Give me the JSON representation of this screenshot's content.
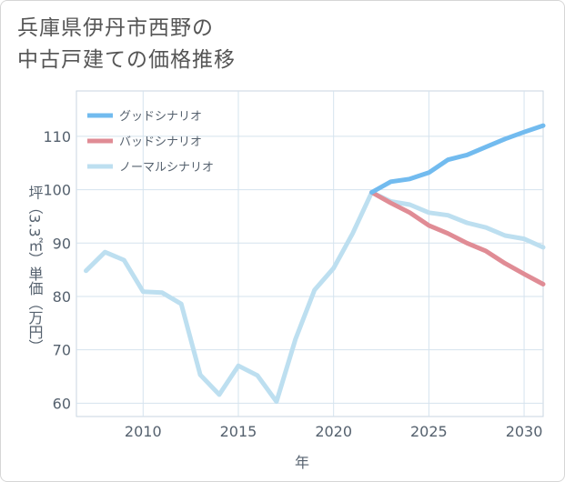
{
  "title": {
    "line1": "兵庫県伊丹市西野の",
    "line2": "中古戸建ての価格推移"
  },
  "chart_data": {
    "type": "line",
    "xlabel": "年",
    "ylabel": "坪（3.3㎡）単価（万円）",
    "xlim": [
      2006.5,
      2031
    ],
    "ylim": [
      57.5,
      118.5
    ],
    "xticks": [
      2010,
      2015,
      2020,
      2025,
      2030
    ],
    "yticks": [
      60,
      70,
      80,
      90,
      100,
      110
    ],
    "grid": true,
    "legend_position": "top-left",
    "series": [
      {
        "name": "グッドシナリオ",
        "color": "#72bbef",
        "x": [
          2022,
          2023,
          2024,
          2025,
          2026,
          2027,
          2028,
          2029,
          2030,
          2031
        ],
        "y": [
          99.5,
          101.5,
          102.0,
          103.2,
          105.6,
          106.5,
          108.0,
          109.5,
          110.8,
          112.0
        ]
      },
      {
        "name": "バッドシナリオ",
        "color": "#e08c95",
        "x": [
          2022,
          2023,
          2024,
          2025,
          2026,
          2027,
          2028,
          2029,
          2030,
          2031
        ],
        "y": [
          99.5,
          97.5,
          95.7,
          93.3,
          91.8,
          90.0,
          88.5,
          86.2,
          84.2,
          82.3
        ]
      },
      {
        "name": "ノーマルシナリオ",
        "color": "#bddff0",
        "x": [
          2007,
          2008,
          2009,
          2010,
          2011,
          2012,
          2013,
          2014,
          2015,
          2016,
          2017,
          2018,
          2019,
          2020,
          2021,
          2022,
          2023,
          2024,
          2025,
          2026,
          2027,
          2028,
          2029,
          2030,
          2031
        ],
        "y": [
          84.8,
          88.3,
          86.8,
          80.9,
          80.7,
          78.6,
          65.3,
          61.6,
          67.0,
          65.2,
          60.3,
          72.0,
          81.2,
          85.3,
          91.8,
          99.5,
          97.8,
          97.2,
          95.7,
          95.2,
          93.8,
          92.9,
          91.4,
          90.8,
          89.2
        ]
      }
    ]
  }
}
